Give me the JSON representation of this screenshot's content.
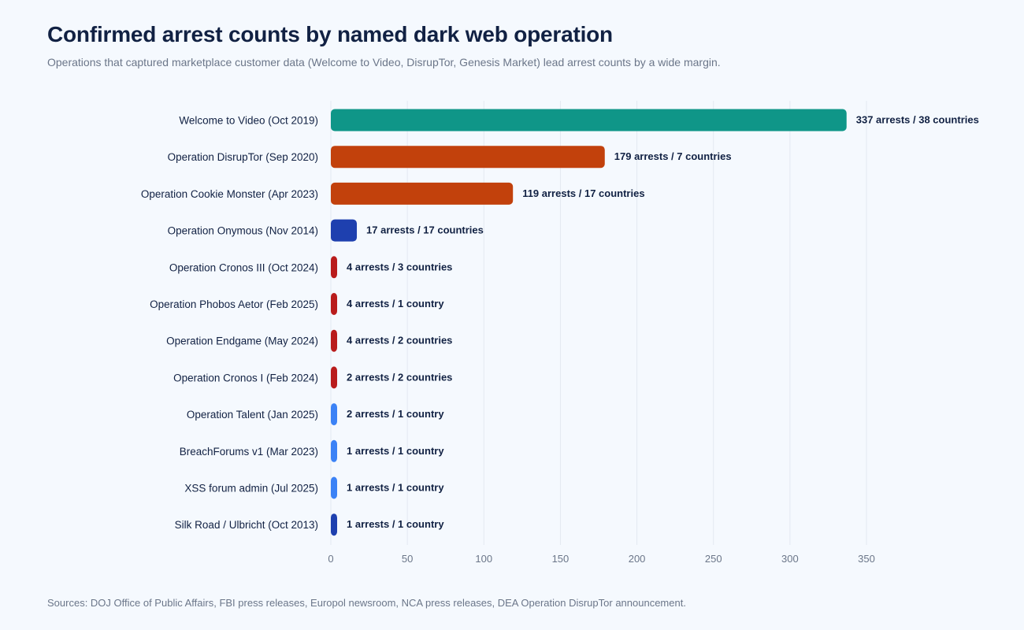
{
  "title": "Confirmed arrest counts by named dark web operation",
  "subtitle": "Operations that captured marketplace customer data (Welcome to Video, DisrupTor, Genesis Market) lead arrest counts by a wide margin.",
  "footer": "Sources: DOJ Office of Public Affairs, FBI press releases, Europol newsroom, NCA press releases, DEA Operation DisrupTor announcement.",
  "chart_data": {
    "type": "bar",
    "orientation": "horizontal",
    "title": "Confirmed arrest counts by named dark web operation",
    "xlabel": "",
    "ylabel": "",
    "xlim": [
      0,
      350
    ],
    "xticks": [
      0,
      50,
      100,
      150,
      200,
      250,
      300,
      350
    ],
    "grid": true,
    "bars": [
      {
        "category": "Welcome to Video (Oct 2019)",
        "value": 337,
        "label": "337 arrests / 38 countries",
        "color": "#0f9688"
      },
      {
        "category": "Operation DisrupTor (Sep 2020)",
        "value": 179,
        "label": "179 arrests / 7 countries",
        "color": "#c2410c"
      },
      {
        "category": "Operation Cookie Monster (Apr 2023)",
        "value": 119,
        "label": "119 arrests / 17 countries",
        "color": "#c2410c"
      },
      {
        "category": "Operation Onymous (Nov 2014)",
        "value": 17,
        "label": "17 arrests / 17 countries",
        "color": "#1e40af"
      },
      {
        "category": "Operation Cronos III (Oct 2024)",
        "value": 4,
        "label": "4 arrests / 3 countries",
        "color": "#b91c1c"
      },
      {
        "category": "Operation Phobos Aetor (Feb 2025)",
        "value": 4,
        "label": "4 arrests / 1 country",
        "color": "#b91c1c"
      },
      {
        "category": "Operation Endgame (May 2024)",
        "value": 4,
        "label": "4 arrests / 2 countries",
        "color": "#b91c1c"
      },
      {
        "category": "Operation Cronos I (Feb 2024)",
        "value": 2,
        "label": "2 arrests / 2 countries",
        "color": "#b91c1c"
      },
      {
        "category": "Operation Talent (Jan 2025)",
        "value": 2,
        "label": "2 arrests / 1 country",
        "color": "#3b82f6"
      },
      {
        "category": "BreachForums v1 (Mar 2023)",
        "value": 1,
        "label": "1 arrests / 1 country",
        "color": "#3b82f6"
      },
      {
        "category": "XSS forum admin (Jul 2025)",
        "value": 1,
        "label": "1 arrests / 1 country",
        "color": "#3b82f6"
      },
      {
        "category": "Silk Road / Ulbricht (Oct 2013)",
        "value": 1,
        "label": "1 arrests / 1 country",
        "color": "#1e40af"
      }
    ]
  }
}
